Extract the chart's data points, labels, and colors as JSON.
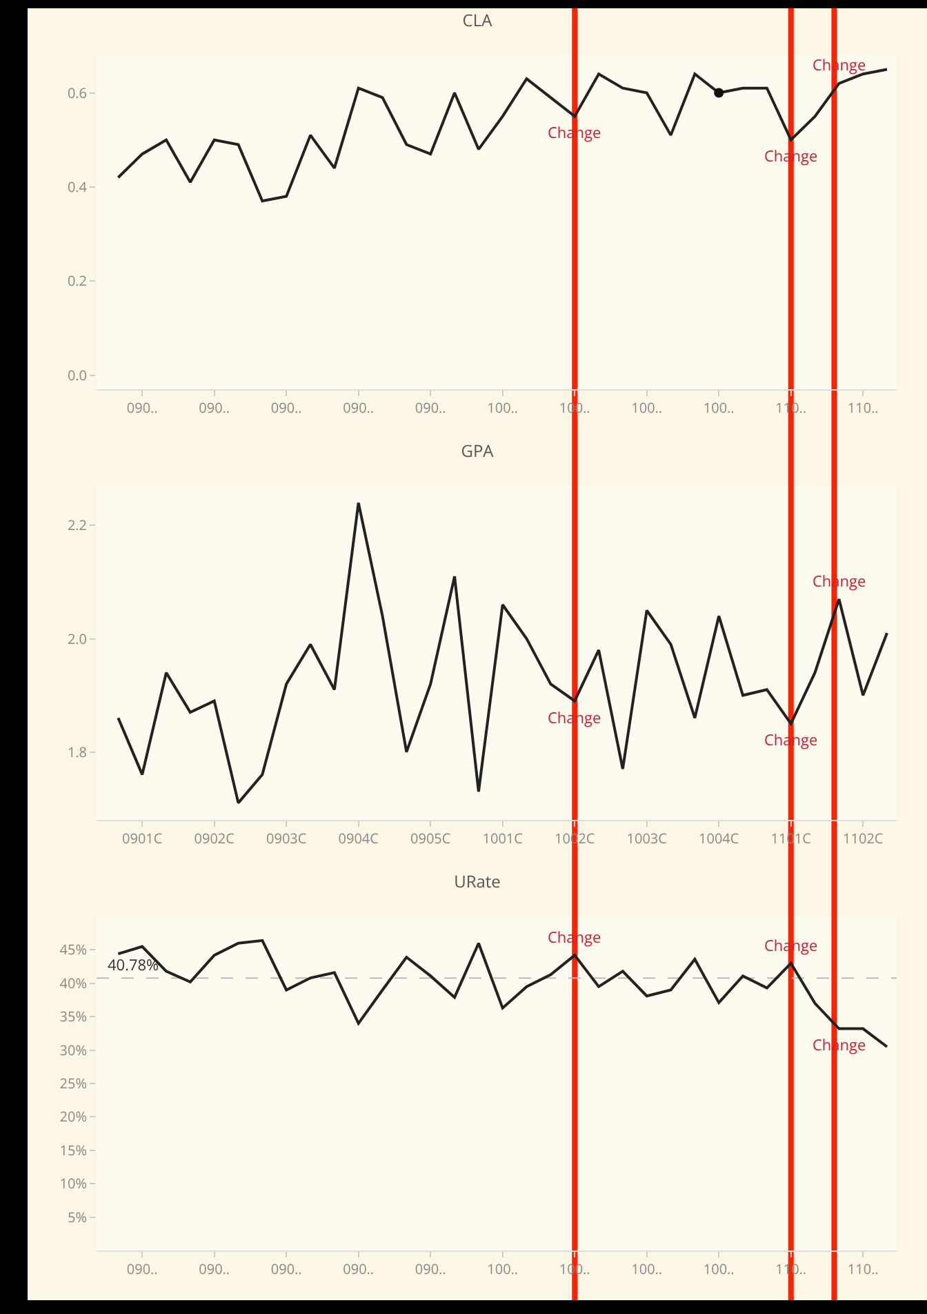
{
  "chart_data": [
    {
      "type": "line",
      "title": "CLA",
      "categories": [
        null,
        "090..",
        null,
        null,
        "090..",
        null,
        null,
        "090..",
        null,
        null,
        "090..",
        null,
        null,
        "090..",
        null,
        null,
        "100..",
        null,
        null,
        "100..",
        null,
        null,
        "100..",
        null,
        null,
        "100..",
        null,
        null,
        "110..",
        null,
        null,
        "110..",
        null
      ],
      "series": [
        {
          "color": "#222222",
          "values": [
            0.42,
            0.47,
            0.5,
            0.41,
            0.5,
            0.49,
            0.37,
            0.38,
            0.51,
            0.44,
            0.61,
            0.59,
            0.49,
            0.47,
            0.6,
            0.48,
            0.55,
            0.63,
            0.59,
            0.55,
            0.64,
            0.61,
            0.6,
            0.51,
            0.64,
            0.6,
            0.61,
            0.61,
            0.5,
            0.55,
            0.62,
            0.64,
            0.65
          ]
        },
        {
          "type": "scatter",
          "marker": "circle",
          "color": "#111111",
          "values": [
            null,
            null,
            null,
            null,
            null,
            null,
            null,
            null,
            null,
            null,
            null,
            null,
            null,
            null,
            null,
            null,
            null,
            null,
            null,
            null,
            null,
            null,
            null,
            null,
            null,
            0.6,
            null,
            null,
            null,
            null,
            null,
            null,
            null
          ]
        }
      ],
      "ylim": [
        -0.03,
        0.68
      ],
      "yticks": [
        {
          "value": 0,
          "label": "0.0"
        },
        0.2,
        0.4,
        0.6
      ],
      "annotations": [
        "Change",
        "Change",
        "Change"
      ]
    },
    {
      "type": "line",
      "title": "GPA",
      "categories": [
        null,
        "0901C",
        null,
        null,
        "0902C",
        null,
        null,
        "0903C",
        null,
        null,
        "0904C",
        null,
        null,
        "0905C",
        null,
        null,
        "1001C",
        null,
        null,
        "1002C",
        null,
        null,
        "1003C",
        null,
        null,
        "1004C",
        null,
        null,
        "1101C",
        null,
        null,
        "1102C",
        null
      ],
      "series": [
        {
          "color": "#222222",
          "values": [
            1.86,
            1.76,
            1.94,
            1.87,
            1.89,
            1.71,
            1.76,
            1.92,
            1.99,
            1.91,
            2.24,
            2.04,
            1.8,
            1.92,
            2.11,
            1.73,
            2.06,
            2.0,
            1.92,
            1.89,
            1.98,
            1.77,
            2.05,
            1.99,
            1.86,
            2.04,
            1.9,
            1.91,
            1.85,
            1.94,
            2.07,
            1.9,
            2.01
          ]
        }
      ],
      "ylim": [
        1.68,
        2.27
      ],
      "yticks": [
        {
          "value": 1.8,
          "label": "1.8"
        },
        {
          "value": 2,
          "label": "2.0"
        },
        {
          "value": 2.2,
          "label": "2.2"
        }
      ],
      "annotations": [
        "Change",
        "Change",
        "Change"
      ]
    },
    {
      "type": "line",
      "title": "URate",
      "categories": [
        null,
        "090..",
        null,
        null,
        "090..",
        null,
        null,
        "090..",
        null,
        null,
        "090..",
        null,
        null,
        "090..",
        null,
        null,
        "100..",
        null,
        null,
        "100..",
        null,
        null,
        "100..",
        null,
        null,
        "100..",
        null,
        null,
        "110..",
        null,
        null,
        "110..",
        null
      ],
      "series": [
        {
          "color": "#222222",
          "values": [
            44.4,
            45.5,
            41.8,
            40.2,
            44.2,
            46.0,
            46.4,
            39.0,
            40.8,
            41.6,
            34.0,
            39.0,
            43.9,
            41.1,
            37.9,
            46.0,
            36.3,
            39.5,
            41.3,
            44.2,
            39.5,
            41.8,
            38.1,
            39.0,
            43.6,
            37.1,
            41.1,
            39.3,
            43.0,
            37.0,
            33.2,
            33.2,
            30.5
          ]
        }
      ],
      "ylim": [
        0,
        50
      ],
      "yticks": [
        {
          "value": 5,
          "label": "5%"
        },
        {
          "value": 10,
          "label": "10%"
        },
        {
          "value": 15,
          "label": "15%"
        },
        {
          "value": 20,
          "label": "20%"
        },
        {
          "value": 25,
          "label": "25%"
        },
        {
          "value": 30,
          "label": "30%"
        },
        {
          "value": 35,
          "label": "35%"
        },
        {
          "value": 40,
          "label": "40%"
        },
        {
          "value": 45,
          "label": "45%"
        }
      ],
      "ref_lines": [
        {
          "axis": "y",
          "value": 40.78,
          "label": "40.78%",
          "color": "#bbbbbb",
          "line_style": "dashed"
        }
      ],
      "annotations": [
        "Change",
        "Change",
        "Change"
      ]
    }
  ]
}
